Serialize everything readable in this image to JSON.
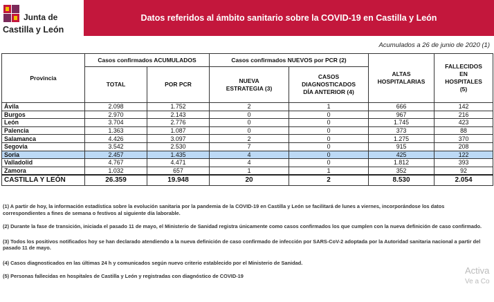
{
  "header": {
    "logo_line1": "Junta de",
    "logo_line2": "Castilla y León",
    "title": "Datos referidos al ámbito sanitario sobre la COVID-19 en Castilla y León",
    "date": "Acumulados a 26 de junio de 2020  (1)"
  },
  "table": {
    "headers": {
      "provincia": "Provincia",
      "acumulados": "Casos confirmados ACUMULADOS",
      "nuevos": "Casos confirmados NUEVOS por PCR (2)",
      "altas": "ALTAS HOSPITALARIAS",
      "fallecidos": "FALLECIDOS EN HOSPITALES (5)",
      "total": "TOTAL",
      "por_pcr": "POR PCR",
      "nueva_estrategia": "NUEVA ESTRATEGIA (3)",
      "dia_anterior": "CASOS DIAGNOSTICADOS DÍA ANTERIOR (4)"
    },
    "rows": [
      [
        "Ávila",
        "2.098",
        "1.752",
        "2",
        "1",
        "666",
        "142"
      ],
      [
        "Burgos",
        "2.970",
        "2.143",
        "0",
        "0",
        "967",
        "216"
      ],
      [
        "León",
        "3.704",
        "2.776",
        "0",
        "0",
        "1.745",
        "423"
      ],
      [
        "Palencia",
        "1.363",
        "1.087",
        "0",
        "0",
        "373",
        "88"
      ],
      [
        "Salamanca",
        "4.426",
        "3.097",
        "2",
        "0",
        "1.275",
        "370"
      ],
      [
        "Segovia",
        "3.542",
        "2.530",
        "7",
        "0",
        "915",
        "208"
      ],
      [
        "Soria",
        "2.457",
        "1.435",
        "4",
        "0",
        "425",
        "122"
      ],
      [
        "Valladolid",
        "4.767",
        "4.471",
        "4",
        "0",
        "1.812",
        "393"
      ],
      [
        "Zamora",
        "1.032",
        "657",
        "1",
        "1",
        "352",
        "92"
      ]
    ],
    "total": [
      "CASTILLA Y LEÓN",
      "26.359",
      "19.948",
      "20",
      "2",
      "8.530",
      "2.054"
    ]
  },
  "notes": [
    "(1) A partir de hoy, la información estadística sobre la evolución sanitaria por la pandemia de la COVID-19 en Castilla y León se facilitará de lunes a viernes, incorporándose los datos correspondientes a fines de semana o festivos al siguiente día laborable.",
    "(2) Durante la fase de transición, iniciada el pasado 11 de mayo, el Ministerio de Sanidad registra únicamente como casos confirmados los que cumplen con la nueva definición de caso confirmado.",
    "(3) Todos los positivos notificados hoy se han declarado atendiendo a la nueva definición de caso confirmado de infección por SARS-CoV-2 adoptada por la Autoridad sanitaria nacional a partir del pasado 11 de mayo.",
    "(4) Casos diagnosticados en las últimas 24 h y comunicados según nuevo criterio establecido por el Ministerio de Sanidad.",
    "(5) Personas fallecidas en hospitales de Castilla y León y registradas con diagnóstico de COVID-19"
  ],
  "watermark": [
    "Activa",
    "Ve a Co"
  ]
}
